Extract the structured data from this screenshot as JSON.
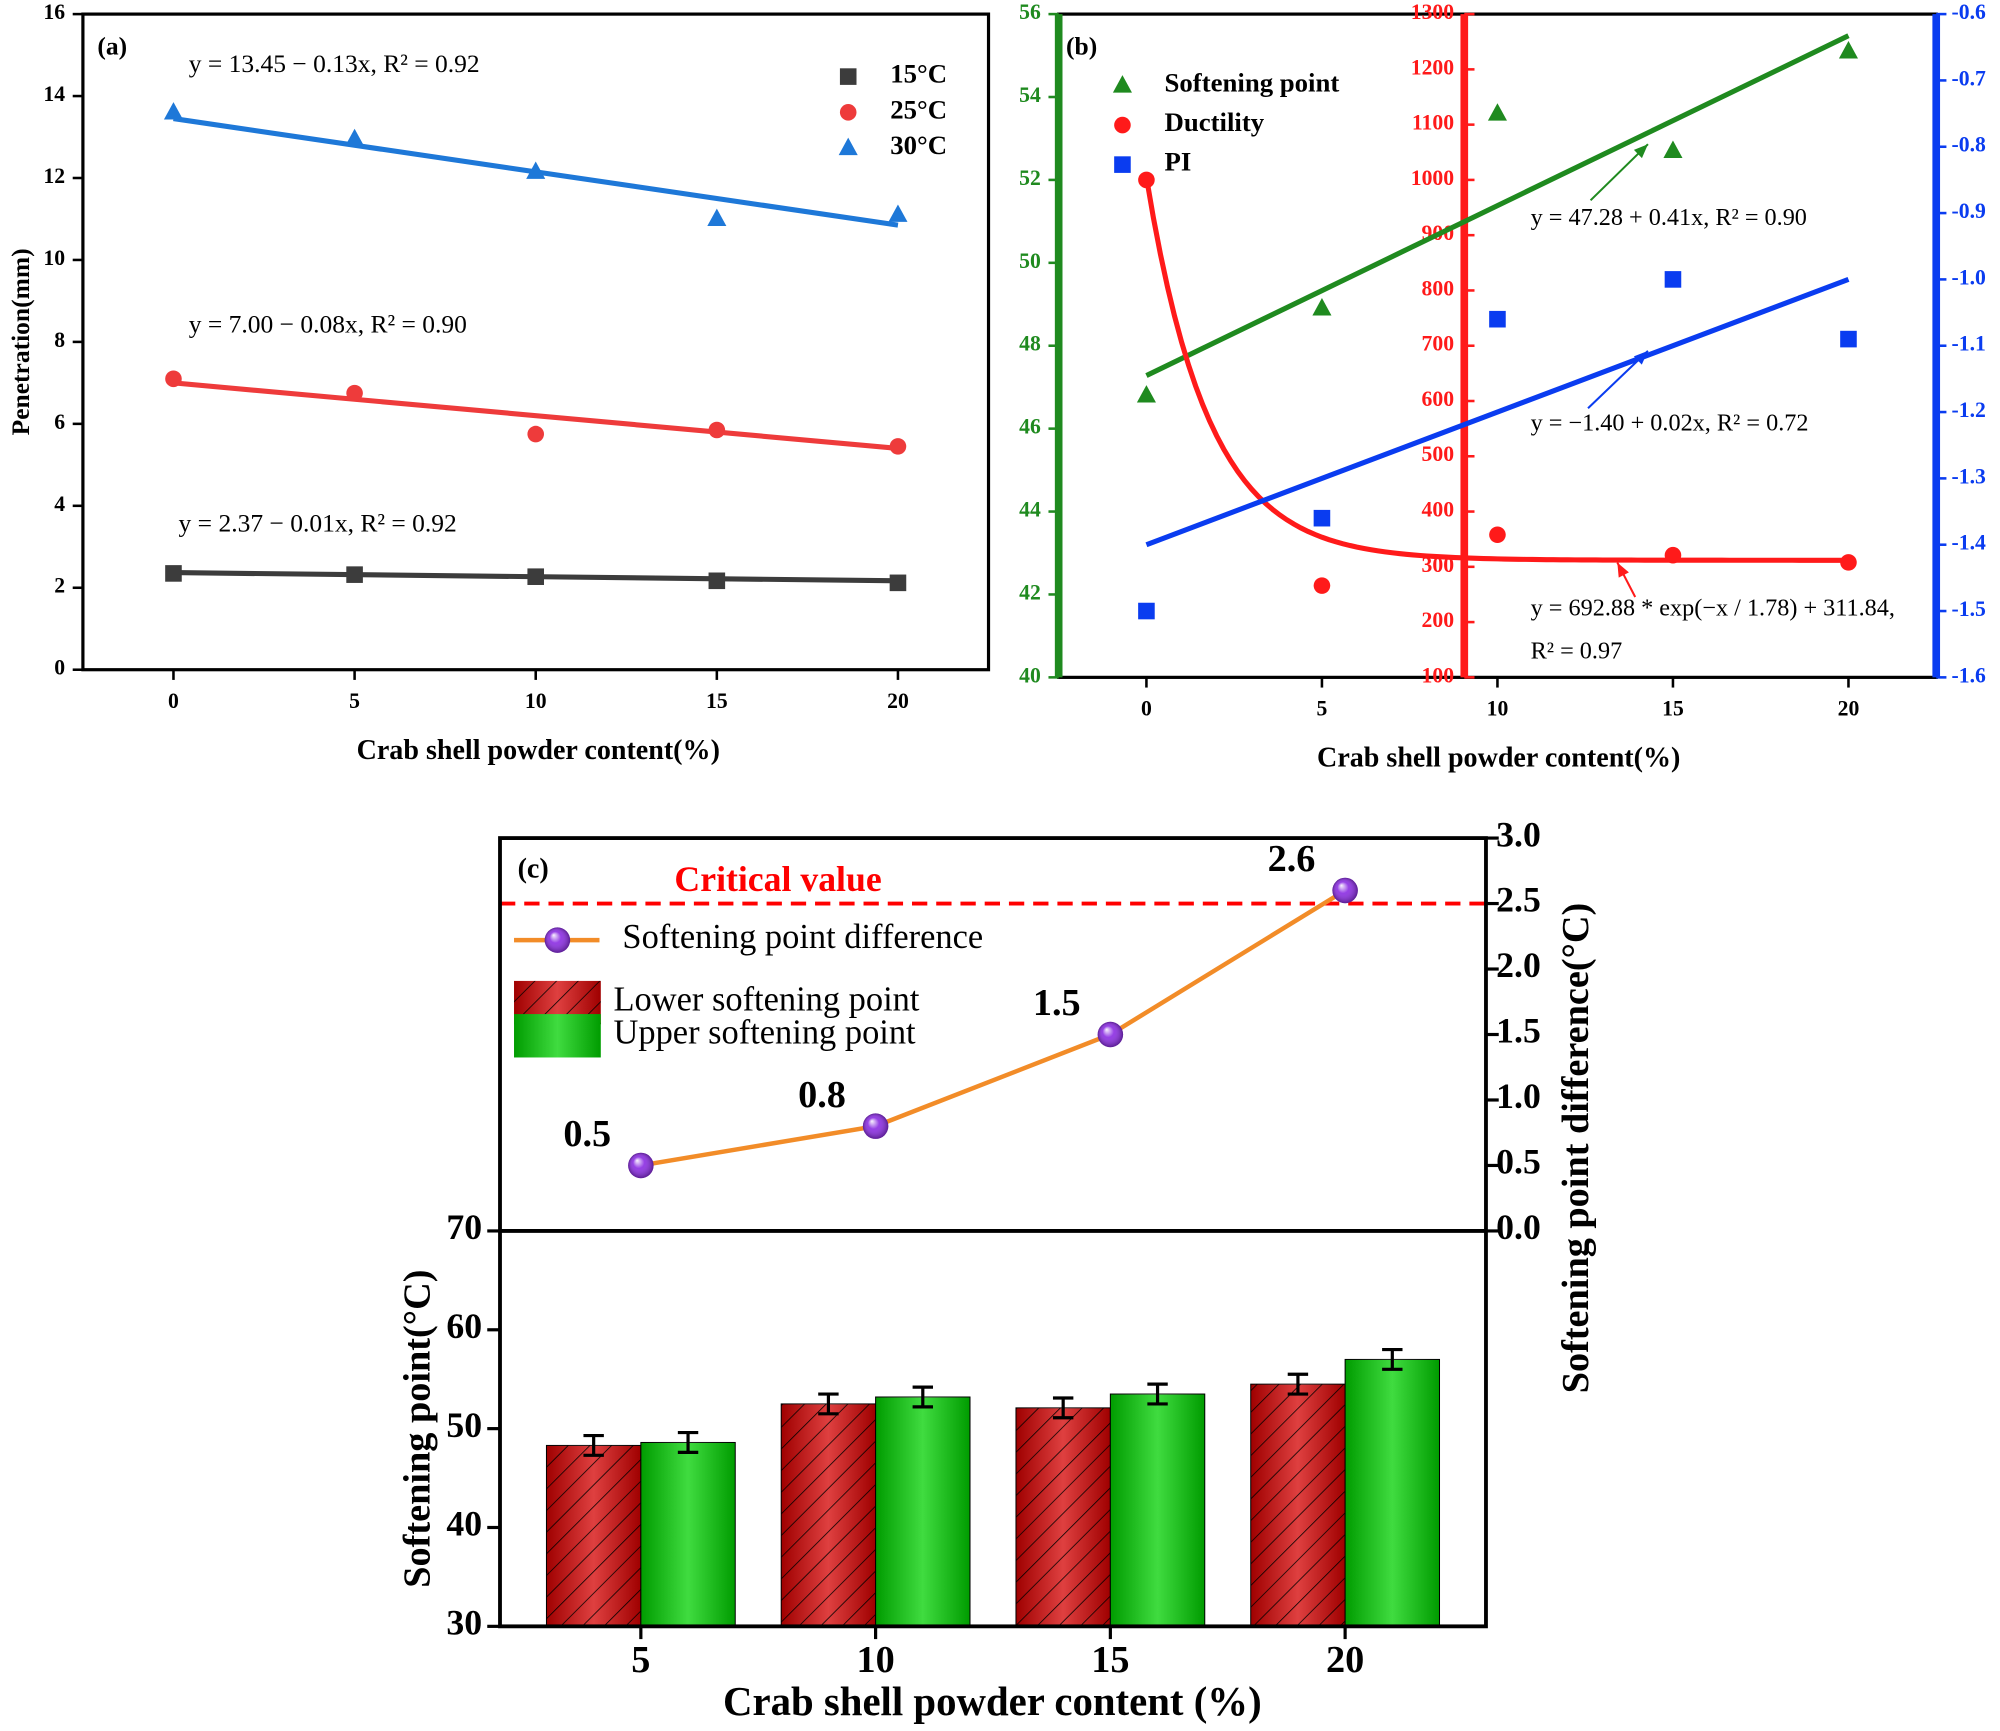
{
  "chart_data": [
    {
      "type": "scatter",
      "label": "(a)",
      "xlabel": "Crab shell powder content(%)",
      "ylabel": "Penetration(mm)",
      "x": [
        0,
        5,
        10,
        15,
        20
      ],
      "xlim": [
        -2.5,
        22.5
      ],
      "xticks": [
        0,
        5,
        10,
        15,
        20
      ],
      "ylim": [
        0,
        16
      ],
      "yticks": [
        0,
        2,
        4,
        6,
        8,
        10,
        12,
        14,
        16
      ],
      "legend": "upper right",
      "series": [
        {
          "name": "15°C",
          "color": "#3c3c3c",
          "marker": "square",
          "values": [
            2.35,
            2.32,
            2.27,
            2.17,
            2.12
          ],
          "equation": "y = 2.37 − 0.01x, R² = 0.92",
          "fit": {
            "intercept": 2.37,
            "slope": -0.01
          }
        },
        {
          "name": "25°C",
          "color": "#ee3b3b",
          "marker": "circle",
          "values": [
            7.1,
            6.75,
            5.75,
            5.85,
            5.45
          ],
          "equation": "y = 7.00 − 0.08x, R² = 0.90",
          "fit": {
            "intercept": 7.0,
            "slope": -0.08
          }
        },
        {
          "name": "30°C",
          "color": "#1e78d8",
          "marker": "triangle",
          "values": [
            13.6,
            12.95,
            12.15,
            11.0,
            11.1
          ],
          "equation": "y = 13.45 − 0.13x,   R² = 0.92",
          "fit": {
            "intercept": 13.45,
            "slope": -0.13
          }
        }
      ]
    },
    {
      "type": "scatter",
      "label": "(b)",
      "xlabel": "Crab shell powder content(%)",
      "x": [
        0,
        5,
        10,
        15,
        20
      ],
      "xlim": [
        -2.5,
        22.5
      ],
      "xticks": [
        0,
        5,
        10,
        15,
        20
      ],
      "ylim": [
        40,
        56
      ],
      "yticks": [
        40,
        42,
        44,
        46,
        48,
        50,
        52,
        54,
        56
      ],
      "y2lim": [
        100,
        1300
      ],
      "y2ticks": [
        100,
        200,
        300,
        400,
        500,
        600,
        700,
        800,
        900,
        1000,
        1100,
        1200,
        1300
      ],
      "y3lim": [
        -1.6,
        -0.6
      ],
      "y3ticks": [
        -1.6,
        -1.5,
        -1.4,
        -1.3,
        -1.2,
        -1.1,
        {
          "value": -1,
          "label": "-1.0"
        },
        -0.9,
        -0.8,
        -0.7,
        -0.6
      ],
      "legend": "upper left",
      "series": [
        {
          "name": "Softening point",
          "color": "#1f8a1f",
          "marker": "triangle",
          "axis": "y",
          "values": [
            46.8,
            48.9,
            53.6,
            52.7,
            55.1
          ],
          "equation": "y = 47.28 + 0.41x, R² = 0.90",
          "fit": {
            "intercept": 47.28,
            "slope": 0.41
          }
        },
        {
          "name": "Ductility",
          "color": "#ff1a1a",
          "marker": "circle",
          "axis": "y2",
          "values": [
            1000,
            266,
            358,
            321,
            308
          ],
          "equation": [
            "y = 692.88 * exp(−x / 1.78) + 311.84,",
            "R² = 0.97"
          ],
          "fit": {
            "a": 692.88,
            "t": 1.78,
            "c": 311.84
          }
        },
        {
          "name": "PI",
          "color": "#0a3cf0",
          "marker": "square",
          "axis": "y3",
          "values": [
            -1.5,
            -1.36,
            -1.06,
            -1.0,
            -1.09
          ],
          "equation": "y = −1.40 + 0.02x, R² = 0.72",
          "fit": {
            "intercept": -1.4,
            "slope": 0.02
          }
        }
      ]
    },
    {
      "type": "bar",
      "label": "(c)",
      "xlabel": "Crab shell powder content (%)",
      "ylabel": "Softening point(°C)",
      "y2label": "Softening point difference(°C)",
      "x": [
        5,
        10,
        15,
        20
      ],
      "xlim": [
        2,
        23
      ],
      "ylim": [
        30,
        70
      ],
      "yticks": [
        30,
        40,
        50,
        60,
        70
      ],
      "y2lim": [
        0,
        3
      ],
      "y2ticks": [
        {
          "value": 0,
          "label": "0.0"
        },
        0.5,
        {
          "value": 1,
          "label": "1.0"
        },
        1.5,
        {
          "value": 2,
          "label": "2.0"
        },
        2.5,
        {
          "value": 3,
          "label": "3.0"
        }
      ],
      "critical": {
        "value": 2.5,
        "label": "Critical value",
        "color": "#ff0000"
      },
      "series": [
        {
          "name": "Softening point difference",
          "type": "line",
          "axis": "y2",
          "color": "#f28c28",
          "marker_color": "#8a2be2",
          "values": [
            0.5,
            0.8,
            1.5,
            2.6
          ]
        },
        {
          "name": "Lower softening point",
          "color": "#d40000",
          "hatch": true,
          "values": [
            48.3,
            52.5,
            52.1,
            54.5
          ],
          "errors": [
            1.0,
            1.0,
            1.0,
            1.0
          ]
        },
        {
          "name": "Upper softening point",
          "color": "#00d000",
          "values": [
            48.6,
            53.2,
            53.5,
            57.0
          ],
          "errors": [
            1.0,
            1.0,
            1.0,
            1.0
          ]
        }
      ]
    }
  ]
}
